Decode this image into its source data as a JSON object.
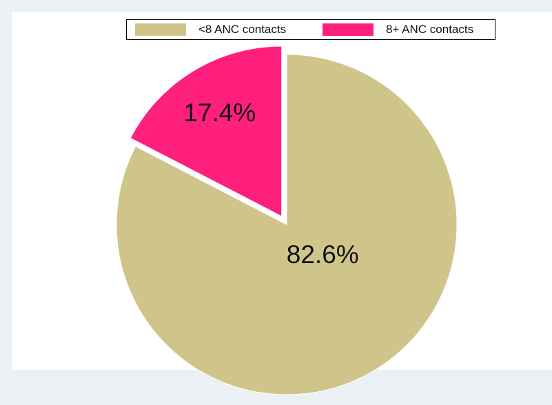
{
  "colors": {
    "page_background": "#eaf0f3",
    "plot_background": "#ffffff",
    "series_1": "#cfc58b",
    "series_2": "#ff1f7d"
  },
  "legend": {
    "items": [
      {
        "label": "<8 ANC contacts",
        "color": "#cfc58b"
      },
      {
        "label": "8+ ANC contacts",
        "color": "#ff1f7d"
      }
    ]
  },
  "chart_data": {
    "type": "pie",
    "categories": [
      "<8 ANC contacts",
      "8+ ANC contacts"
    ],
    "values": [
      82.6,
      17.4
    ],
    "value_labels": [
      "82.6%",
      "17.4%"
    ],
    "exploded": [
      "8+ ANC contacts"
    ],
    "legend_position": "top",
    "title": ""
  }
}
